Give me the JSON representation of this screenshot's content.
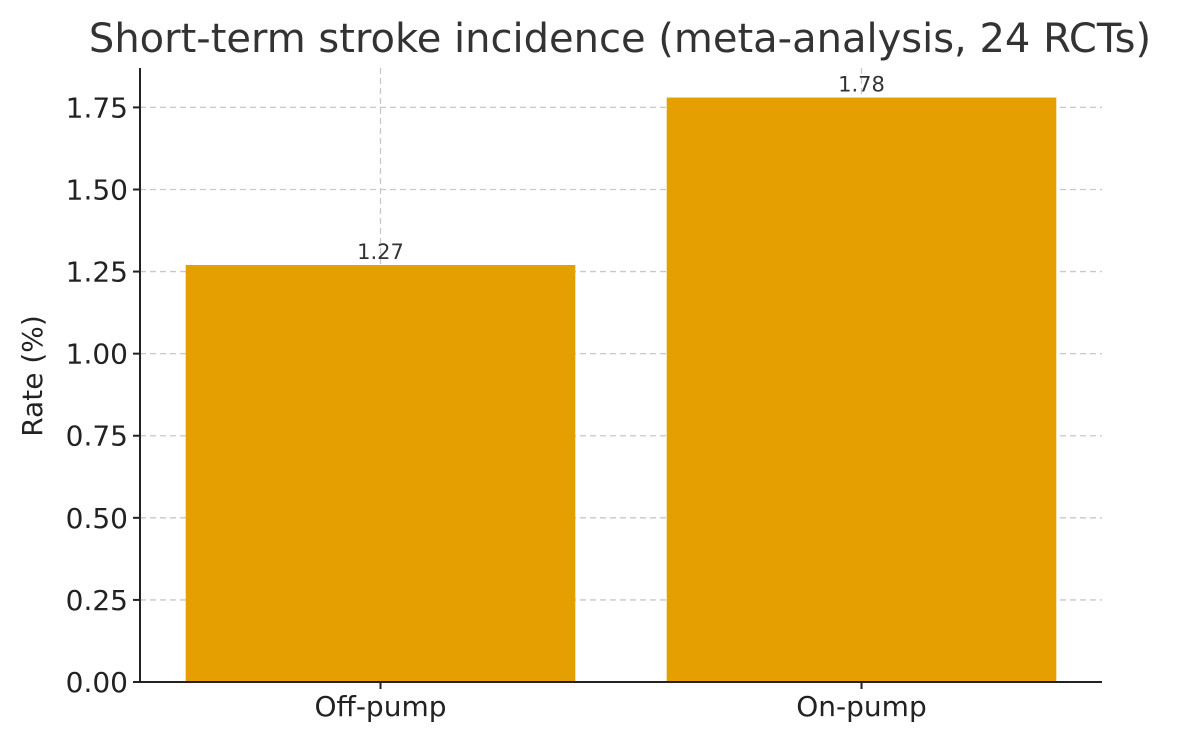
{
  "chart_data": {
    "type": "bar",
    "title": "Short-term stroke incidence (meta-analysis, 24 RCTs)",
    "xlabel": "",
    "ylabel": "Rate (%)",
    "categories": [
      "Off-pump",
      "On-pump"
    ],
    "values": [
      1.27,
      1.78
    ],
    "data_labels": [
      "1.27",
      "1.78"
    ],
    "ylim": [
      0,
      1.87
    ],
    "yticks": [
      0,
      0.25,
      0.5,
      0.75,
      1.0,
      1.25,
      1.5,
      1.75
    ],
    "ytick_labels": [
      "0.00",
      "0.25",
      "0.50",
      "0.75",
      "1.00",
      "1.25",
      "1.50",
      "1.75"
    ],
    "grid": true,
    "bar_color": "#E69F00"
  }
}
